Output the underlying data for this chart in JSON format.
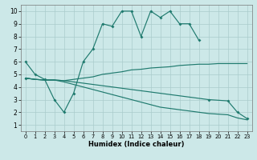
{
  "xlabel": "Humidex (Indice chaleur)",
  "background_color": "#cce8e8",
  "grid_color": "#aacccc",
  "line_color": "#1f7a6e",
  "xlim": [
    -0.5,
    23.5
  ],
  "ylim": [
    0.5,
    10.5
  ],
  "xticks": [
    0,
    1,
    2,
    3,
    4,
    5,
    6,
    7,
    8,
    9,
    10,
    11,
    12,
    13,
    14,
    15,
    16,
    17,
    18,
    19,
    20,
    21,
    22,
    23
  ],
  "yticks": [
    1,
    2,
    3,
    4,
    5,
    6,
    7,
    8,
    9,
    10
  ],
  "line1_x": [
    0,
    1,
    2,
    3,
    4,
    5,
    6,
    7,
    8,
    9,
    10,
    11,
    12,
    13,
    14,
    15,
    16,
    17,
    18
  ],
  "line1_y": [
    6,
    5,
    4.6,
    3,
    2,
    3.5,
    6,
    7,
    9,
    8.8,
    10,
    10,
    8,
    10,
    9.5,
    10,
    9,
    9,
    7.7
  ],
  "line2_x": [
    0,
    1,
    2,
    3,
    4,
    5,
    6,
    7,
    8,
    9,
    10,
    11,
    12,
    13,
    14,
    15,
    16,
    17,
    18,
    19,
    20,
    21,
    22,
    23
  ],
  "line2_y": [
    4.7,
    4.6,
    4.55,
    4.55,
    4.5,
    4.6,
    4.7,
    4.8,
    5.0,
    5.1,
    5.2,
    5.35,
    5.4,
    5.5,
    5.55,
    5.6,
    5.7,
    5.75,
    5.8,
    5.8,
    5.85,
    5.85,
    5.85,
    5.85
  ],
  "line3_x": [
    0,
    1,
    2,
    3,
    4,
    5,
    6,
    7,
    8,
    9,
    10,
    11,
    12,
    13,
    14,
    15,
    16,
    17,
    18,
    19,
    20,
    21,
    22,
    23
  ],
  "line3_y": [
    4.7,
    4.6,
    4.55,
    4.55,
    4.5,
    4.4,
    4.3,
    4.2,
    4.1,
    4.0,
    3.9,
    3.8,
    3.7,
    3.6,
    3.5,
    3.4,
    3.3,
    3.2,
    3.1,
    3.0,
    2.95,
    2.9,
    2.0,
    1.5
  ],
  "line4_x": [
    0,
    1,
    2,
    3,
    4,
    5,
    6,
    7,
    8,
    9,
    10,
    11,
    12,
    13,
    14,
    15,
    16,
    17,
    18,
    19,
    20,
    21,
    22,
    23
  ],
  "line4_y": [
    4.7,
    4.6,
    4.55,
    4.55,
    4.4,
    4.2,
    4.0,
    3.8,
    3.6,
    3.4,
    3.2,
    3.0,
    2.8,
    2.6,
    2.4,
    2.3,
    2.2,
    2.1,
    2.0,
    1.9,
    1.85,
    1.8,
    1.55,
    1.4
  ],
  "line3_markers": [
    0,
    19,
    21,
    22,
    23
  ]
}
